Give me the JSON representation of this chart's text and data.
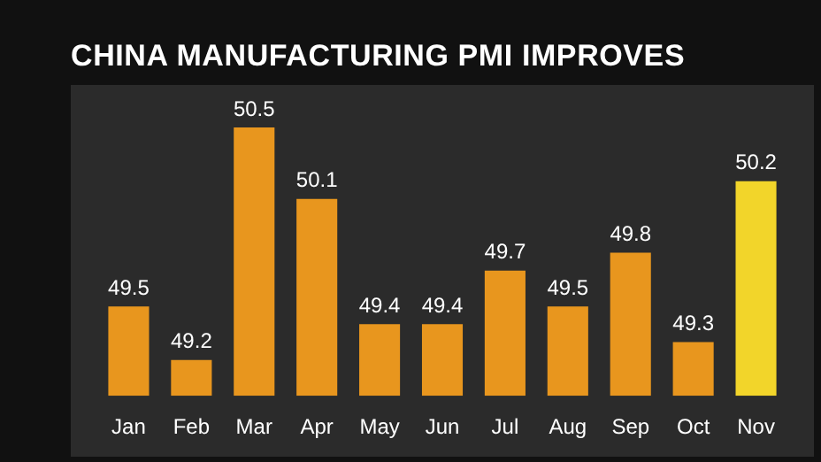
{
  "chart_data": {
    "type": "bar",
    "title": "CHINA MANUFACTURING PMI IMPROVES",
    "categories": [
      "Jan",
      "Feb",
      "Mar",
      "Apr",
      "May",
      "Jun",
      "Jul",
      "Aug",
      "Sep",
      "Oct",
      "Nov"
    ],
    "values": [
      49.5,
      49.2,
      50.5,
      50.1,
      49.4,
      49.4,
      49.7,
      49.5,
      49.8,
      49.3,
      50.2
    ],
    "colors": [
      "#e8961e",
      "#e8961e",
      "#e8961e",
      "#e8961e",
      "#e8961e",
      "#e8961e",
      "#e8961e",
      "#e8961e",
      "#e8961e",
      "#e8961e",
      "#f2d52a"
    ],
    "ylim": [
      49,
      50.5
    ],
    "tick_labels": "x",
    "data_labels": true,
    "legend": false
  }
}
